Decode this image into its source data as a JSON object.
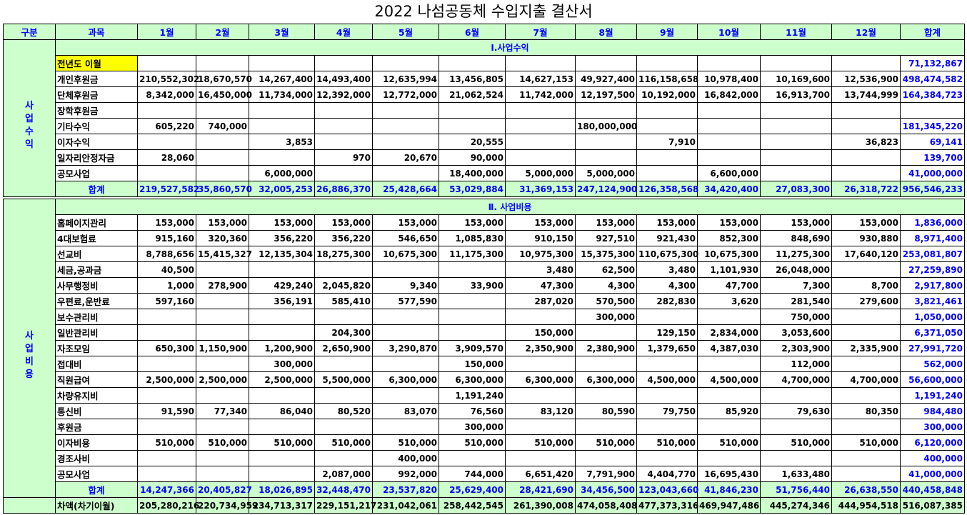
{
  "title": "2022 나섬공동체 수입지출 결산서",
  "headers": [
    "구분",
    "과목",
    "1월",
    "2월",
    "3월",
    "4월",
    "5월",
    "6월",
    "7월",
    "8월",
    "9월",
    "10월",
    "11월",
    "12월",
    "합계"
  ],
  "income": {
    "section_title": "Ⅰ.사업수익",
    "category": "사\n업\n수\n익",
    "rows": [
      {
        "label": "전년도 이월",
        "values": [
          "",
          "",
          "",
          "",
          "",
          "",
          "",
          "",
          "",
          "",
          "",
          ""
        ],
        "total": "71,132,867",
        "highlight": true
      },
      {
        "label": "개인후원금",
        "values": [
          "210,552,302",
          "18,670,570",
          "14,267,400",
          "14,493,400",
          "12,635,994",
          "13,456,805",
          "14,627,153",
          "49,927,400",
          "116,158,658",
          "10,978,400",
          "10,169,600",
          "12,536,900"
        ],
        "total": "498,474,582"
      },
      {
        "label": "단체후원금",
        "values": [
          "8,342,000",
          "16,450,000",
          "11,734,000",
          "12,392,000",
          "12,772,000",
          "21,062,524",
          "11,742,000",
          "12,197,500",
          "10,192,000",
          "16,842,000",
          "16,913,700",
          "13,744,999"
        ],
        "total": "164,384,723"
      },
      {
        "label": "장학후원금",
        "values": [
          "",
          "",
          "",
          "",
          "",
          "",
          "",
          "",
          "",
          "",
          "",
          ""
        ],
        "total": ""
      },
      {
        "label": "기타수익",
        "values": [
          "605,220",
          "740,000",
          "",
          "",
          "",
          "",
          "",
          "180,000,000",
          "",
          "",
          "",
          ""
        ],
        "total": "181,345,220"
      },
      {
        "label": "이자수익",
        "values": [
          "",
          "",
          "3,853",
          "",
          "",
          "20,555",
          "",
          "",
          "7,910",
          "",
          "",
          "36,823"
        ],
        "total": "69,141"
      },
      {
        "label": "일자리안정자금",
        "values": [
          "28,060",
          "",
          "",
          "970",
          "20,670",
          "90,000",
          "",
          "",
          "",
          "",
          "",
          ""
        ],
        "total": "139,700"
      },
      {
        "label": "공모사업",
        "values": [
          "",
          "",
          "6,000,000",
          "",
          "",
          "18,400,000",
          "5,000,000",
          "5,000,000",
          "",
          "6,600,000",
          "",
          ""
        ],
        "total": "41,000,000"
      }
    ],
    "sum": {
      "label": "합계",
      "values": [
        "219,527,582",
        "35,860,570",
        "32,005,253",
        "26,886,370",
        "25,428,664",
        "53,029,884",
        "31,369,153",
        "247,124,900",
        "126,358,568",
        "34,420,400",
        "27,083,300",
        "26,318,722"
      ],
      "total": "956,546,233"
    }
  },
  "expense": {
    "section_title": "Ⅱ. 사업비용",
    "category": "사\n업\n비\n용",
    "rows": [
      {
        "label": "홈페이지관리",
        "values": [
          "153,000",
          "153,000",
          "153,000",
          "153,000",
          "153,000",
          "153,000",
          "153,000",
          "153,000",
          "153,000",
          "153,000",
          "153,000",
          "153,000"
        ],
        "total": "1,836,000"
      },
      {
        "label": "4대보험료",
        "values": [
          "915,160",
          "320,360",
          "356,220",
          "356,220",
          "546,650",
          "1,085,830",
          "910,150",
          "927,510",
          "921,430",
          "852,300",
          "848,690",
          "930,880"
        ],
        "total": "8,971,400"
      },
      {
        "label": "선교비",
        "values": [
          "8,788,656",
          "15,415,327",
          "12,135,304",
          "18,275,300",
          "10,675,300",
          "11,175,300",
          "10,975,300",
          "15,375,300",
          "110,675,300",
          "10,675,300",
          "11,275,300",
          "17,640,120"
        ],
        "total": "253,081,807"
      },
      {
        "label": "세금,공과금",
        "values": [
          "40,500",
          "",
          "",
          "",
          "",
          "",
          "3,480",
          "62,500",
          "3,480",
          "1,101,930",
          "26,048,000",
          ""
        ],
        "total": "27,259,890"
      },
      {
        "label": "사무행정비",
        "values": [
          "1,000",
          "278,900",
          "429,240",
          "2,045,820",
          "9,340",
          "33,900",
          "47,300",
          "4,300",
          "4,300",
          "47,700",
          "7,300",
          "8,700"
        ],
        "total": "2,917,800"
      },
      {
        "label": "우편료,운반료",
        "values": [
          "597,160",
          "",
          "356,191",
          "585,410",
          "577,590",
          "",
          "287,020",
          "570,500",
          "282,830",
          "3,620",
          "281,540",
          "279,600"
        ],
        "total": "3,821,461"
      },
      {
        "label": "보수관리비",
        "values": [
          "",
          "",
          "",
          "",
          "",
          "",
          "",
          "300,000",
          "",
          "",
          "750,000",
          ""
        ],
        "total": "1,050,000"
      },
      {
        "label": "일반관리비",
        "values": [
          "",
          "",
          "",
          "204,300",
          "",
          "",
          "150,000",
          "",
          "129,150",
          "2,834,000",
          "3,053,600",
          ""
        ],
        "total": "6,371,050"
      },
      {
        "label": "자조모임",
        "values": [
          "650,300",
          "1,150,900",
          "1,200,900",
          "2,650,900",
          "3,290,870",
          "3,909,570",
          "2,350,900",
          "2,380,900",
          "1,379,650",
          "4,387,030",
          "2,303,900",
          "2,335,900"
        ],
        "total": "27,991,720"
      },
      {
        "label": "접대비",
        "values": [
          "",
          "",
          "300,000",
          "",
          "",
          "150,000",
          "",
          "",
          "",
          "",
          "112,000",
          ""
        ],
        "total": "562,000"
      },
      {
        "label": "직원급여",
        "values": [
          "2,500,000",
          "2,500,000",
          "2,500,000",
          "5,500,000",
          "6,300,000",
          "6,300,000",
          "6,300,000",
          "6,300,000",
          "4,500,000",
          "4,500,000",
          "4,700,000",
          "4,700,000"
        ],
        "total": "56,600,000"
      },
      {
        "label": "차량유지비",
        "values": [
          "",
          "",
          "",
          "",
          "",
          "1,191,240",
          "",
          "",
          "",
          "",
          "",
          ""
        ],
        "total": "1,191,240"
      },
      {
        "label": "통신비",
        "values": [
          "91,590",
          "77,340",
          "86,040",
          "80,520",
          "83,070",
          "76,560",
          "83,120",
          "80,590",
          "79,750",
          "85,920",
          "79,630",
          "80,350"
        ],
        "total": "984,480"
      },
      {
        "label": "후원금",
        "values": [
          "",
          "",
          "",
          "",
          "",
          "300,000",
          "",
          "",
          "",
          "",
          "",
          ""
        ],
        "total": "300,000"
      },
      {
        "label": "이자비용",
        "values": [
          "510,000",
          "510,000",
          "510,000",
          "510,000",
          "510,000",
          "510,000",
          "510,000",
          "510,000",
          "510,000",
          "510,000",
          "510,000",
          "510,000"
        ],
        "total": "6,120,000"
      },
      {
        "label": "경조사비",
        "values": [
          "",
          "",
          "",
          "",
          "400,000",
          "",
          "",
          "",
          "",
          "",
          "",
          ""
        ],
        "total": "400,000"
      },
      {
        "label": "공모사업",
        "values": [
          "",
          "",
          "",
          "2,087,000",
          "992,000",
          "744,000",
          "6,651,420",
          "7,791,900",
          "4,404,770",
          "16,695,430",
          "1,633,480",
          ""
        ],
        "total": "41,000,000"
      }
    ],
    "sum": {
      "label": "합계",
      "values": [
        "14,247,366",
        "20,405,827",
        "18,026,895",
        "32,448,470",
        "23,537,820",
        "25,629,400",
        "28,421,690",
        "34,456,500",
        "123,043,660",
        "41,846,230",
        "51,756,440",
        "26,638,550"
      ],
      "total": "440,458,848"
    }
  },
  "difference": {
    "label": "차액(차기이월)",
    "values": [
      "205,280,216",
      "220,734,959",
      "234,713,317",
      "229,151,217",
      "231,042,061",
      "258,442,545",
      "261,390,008",
      "474,058,408",
      "477,373,316",
      "469,947,486",
      "445,274,346",
      "444,954,518"
    ],
    "total": "516,087,385"
  },
  "colors": {
    "header_bg": "#ccffcc",
    "header_text": "#0000ff",
    "highlight": "#ffff00"
  }
}
